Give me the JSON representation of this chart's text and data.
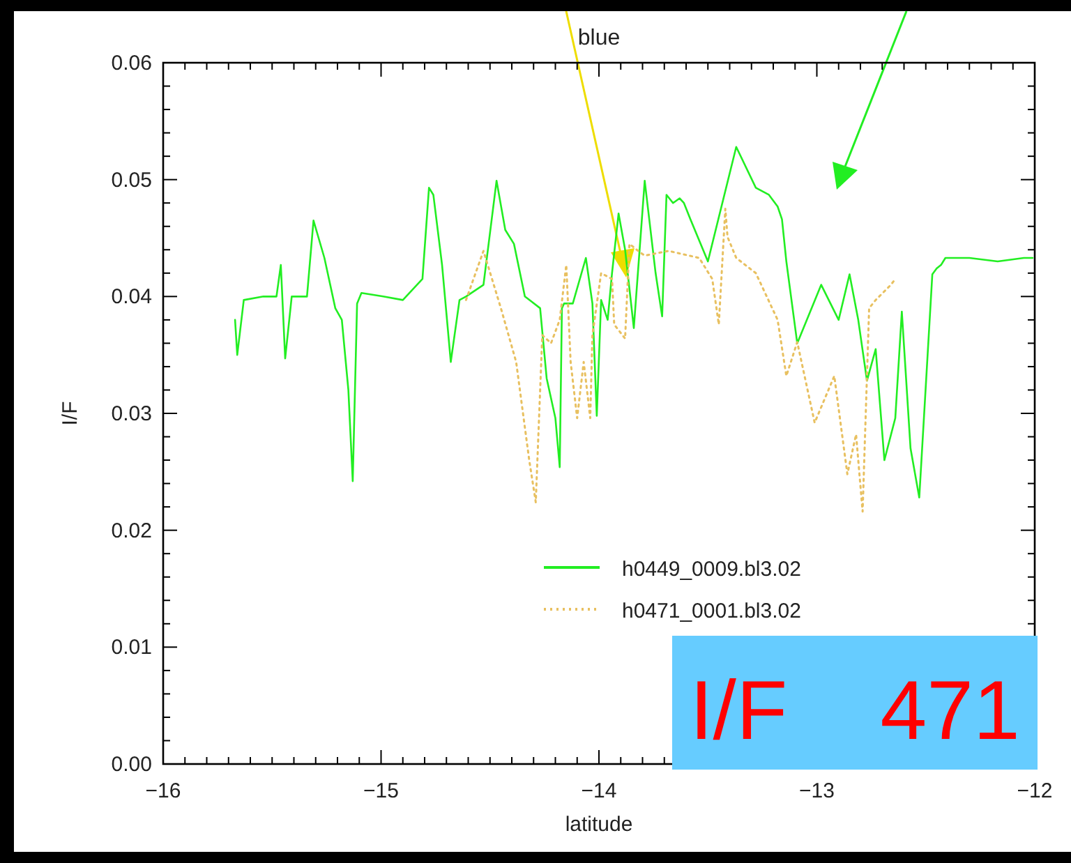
{
  "chart_data": {
    "type": "line",
    "title": "blue",
    "xlabel": "latitude",
    "ylabel": "I/F",
    "xlim": [
      -16,
      -12
    ],
    "xticks": [
      -16,
      -15,
      -14,
      -13,
      -12
    ],
    "ylim": [
      0,
      0.06
    ],
    "yticks": [
      {
        "value": 0,
        "label": "0.00"
      },
      {
        "value": 0.01,
        "label": "0.01"
      },
      {
        "value": 0.02,
        "label": "0.02"
      },
      {
        "value": 0.03,
        "label": "0.03"
      },
      {
        "value": 0.04,
        "label": "0.04"
      },
      {
        "value": 0.05,
        "label": "0.05"
      },
      {
        "value": 0.06,
        "label": "0.06"
      }
    ],
    "grid": false,
    "legend": "bottom",
    "annotations": [
      "I/F    471"
    ],
    "series": [
      {
        "name": "h0449_0009.bl3.02",
        "color": "#22ee22",
        "line_style": "solid",
        "x": [
          -15.67,
          -15.66,
          -15.63,
          -15.54,
          -15.48,
          -15.46,
          -15.44,
          -15.41,
          -15.34,
          -15.31,
          -15.26,
          -15.21,
          -15.18,
          -15.15,
          -15.13,
          -15.11,
          -15.09,
          -14.99,
          -14.9,
          -14.81,
          -14.78,
          -14.76,
          -14.72,
          -14.68,
          -14.64,
          -14.61,
          -14.53,
          -14.47,
          -14.43,
          -14.39,
          -14.34,
          -14.27,
          -14.24,
          -14.2,
          -14.18,
          -14.17,
          -14.16,
          -14.12,
          -14.06,
          -14.03,
          -14.01,
          -13.99,
          -13.96,
          -13.94,
          -13.91,
          -13.88,
          -13.84,
          -13.79,
          -13.74,
          -13.71,
          -13.69,
          -13.66,
          -13.63,
          -13.61,
          -13.58,
          -13.5,
          -13.37,
          -13.28,
          -13.22,
          -13.18,
          -13.16,
          -13.14,
          -13.09,
          -12.98,
          -12.9,
          -12.85,
          -12.81,
          -12.77,
          -12.73,
          -12.69,
          -12.64,
          -12.61,
          -12.57,
          -12.53,
          -12.47,
          -12.45,
          -12.43,
          -12.42,
          -12.41,
          -12.3,
          -12.17,
          -12.05,
          -12.01
        ],
        "values": [
          0.038,
          0.035,
          0.0397,
          0.04,
          0.04,
          0.0427,
          0.0347,
          0.04,
          0.04,
          0.0465,
          0.0433,
          0.039,
          0.038,
          0.032,
          0.0242,
          0.0394,
          0.0403,
          0.04,
          0.0397,
          0.0415,
          0.0493,
          0.0487,
          0.0427,
          0.0344,
          0.0397,
          0.04,
          0.041,
          0.0499,
          0.0457,
          0.0445,
          0.04,
          0.039,
          0.033,
          0.0296,
          0.0254,
          0.039,
          0.0394,
          0.0394,
          0.0433,
          0.0394,
          0.0298,
          0.0397,
          0.038,
          0.042,
          0.0471,
          0.044,
          0.0373,
          0.0499,
          0.042,
          0.0383,
          0.0487,
          0.048,
          0.0484,
          0.048,
          0.0466,
          0.043,
          0.0528,
          0.0493,
          0.0487,
          0.0477,
          0.0466,
          0.043,
          0.036,
          0.041,
          0.038,
          0.0419,
          0.038,
          0.0328,
          0.0355,
          0.026,
          0.0296,
          0.0387,
          0.027,
          0.0228,
          0.0419,
          0.0424,
          0.0427,
          0.043,
          0.0433,
          0.0433,
          0.043,
          0.0433,
          0.0433
        ]
      },
      {
        "name": "h0471_0001.bl3.02",
        "color": "#e8c060",
        "line_style": "dotted",
        "x": [
          -14.61,
          -14.53,
          -14.45,
          -14.38,
          -14.32,
          -14.29,
          -14.26,
          -14.22,
          -14.18,
          -14.15,
          -14.13,
          -14.1,
          -14.07,
          -14.04,
          -14.03,
          -13.99,
          -13.94,
          -13.93,
          -13.88,
          -13.86,
          -13.82,
          -13.79,
          -13.68,
          -13.54,
          -13.48,
          -13.45,
          -13.42,
          -13.41,
          -13.37,
          -13.28,
          -13.18,
          -13.14,
          -13.09,
          -13.01,
          -12.92,
          -12.86,
          -12.82,
          -12.79,
          -12.76,
          -12.73,
          -12.66,
          -12.64
        ],
        "values": [
          0.0397,
          0.0439,
          0.039,
          0.0344,
          0.026,
          0.0224,
          0.0367,
          0.036,
          0.038,
          0.0427,
          0.0344,
          0.0296,
          0.0344,
          0.0296,
          0.0367,
          0.042,
          0.0415,
          0.0376,
          0.0364,
          0.0445,
          0.0439,
          0.0435,
          0.0439,
          0.0433,
          0.0415,
          0.0376,
          0.0475,
          0.0451,
          0.0433,
          0.042,
          0.038,
          0.0332,
          0.0361,
          0.0292,
          0.0332,
          0.0248,
          0.0282,
          0.0216,
          0.039,
          0.0397,
          0.041,
          0.0415
        ]
      }
    ]
  }
}
